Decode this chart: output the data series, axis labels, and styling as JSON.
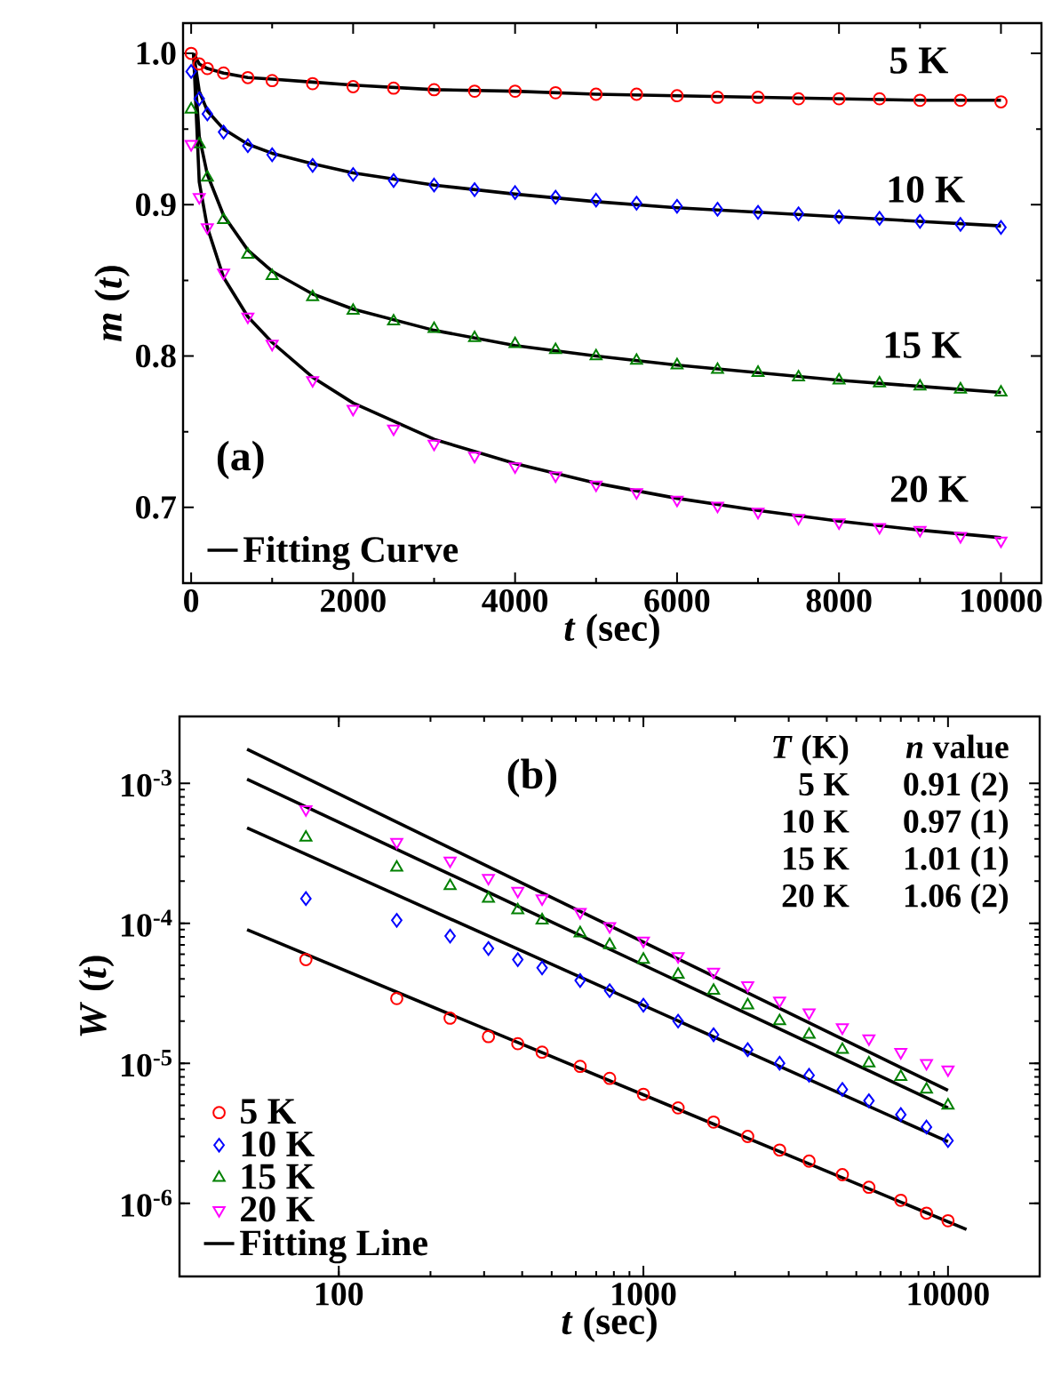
{
  "chart_data": [
    {
      "type": "scatter",
      "xlabel": "*t* (sec)",
      "ylabel": "*m* (*t*)",
      "xlim": [
        -100,
        10500
      ],
      "ylim": [
        0.65,
        1.02
      ],
      "xticks": [
        0,
        2000,
        4000,
        6000,
        8000,
        10000
      ],
      "yticks": [
        {
          "value": 0.7,
          "label": "0.7"
        },
        {
          "value": 0.8,
          "label": "0.8"
        },
        {
          "value": 0.9,
          "label": "0.9"
        },
        {
          "value": 1.0,
          "label": "1.0"
        }
      ],
      "legend": "bottom left",
      "x": [
        0,
        100,
        200,
        400,
        700,
        1000,
        1500,
        2000,
        2500,
        3000,
        3500,
        4000,
        4500,
        5000,
        5500,
        6000,
        6500,
        7000,
        7500,
        8000,
        8500,
        9000,
        9500,
        10000
      ],
      "series": [
        {
          "color": "#ff0000",
          "marker": "circle",
          "values": [
            1.0,
            0.993,
            0.99,
            0.987,
            0.984,
            0.982,
            0.98,
            0.978,
            0.977,
            0.976,
            0.975,
            0.975,
            0.974,
            0.973,
            0.973,
            0.972,
            0.971,
            0.971,
            0.97,
            0.97,
            0.97,
            0.969,
            0.969,
            0.968
          ]
        },
        {
          "color": "#0000ff",
          "marker": "diamond",
          "values": [
            0.988,
            0.97,
            0.96,
            0.948,
            0.939,
            0.933,
            0.926,
            0.92,
            0.916,
            0.913,
            0.91,
            0.908,
            0.905,
            0.903,
            0.901,
            0.899,
            0.897,
            0.895,
            0.894,
            0.892,
            0.891,
            0.889,
            0.887,
            0.885
          ]
        },
        {
          "color": "#008000",
          "marker": "triangle",
          "values": [
            0.963,
            0.94,
            0.918,
            0.89,
            0.867,
            0.853,
            0.839,
            0.83,
            0.823,
            0.818,
            0.812,
            0.808,
            0.804,
            0.8,
            0.797,
            0.794,
            0.791,
            0.789,
            0.786,
            0.784,
            0.782,
            0.78,
            0.778,
            0.776
          ]
        },
        {
          "color": "#ff00ff",
          "marker": "triangle down",
          "values": [
            0.94,
            0.905,
            0.885,
            0.855,
            0.826,
            0.808,
            0.784,
            0.765,
            0.752,
            0.742,
            0.734,
            0.727,
            0.721,
            0.715,
            0.71,
            0.705,
            0.701,
            0.697,
            0.693,
            0.69,
            0.687,
            0.685,
            0.681,
            0.678
          ]
        },
        {
          "type": "line",
          "name": "Fitting Curve",
          "color": "#000000",
          "x": [
            30,
            100,
            200,
            400,
            700,
            1000,
            1500,
            2000,
            3000,
            4000,
            5000,
            6000,
            7000,
            8000,
            9000,
            10000
          ],
          "values": [
            1.0,
            0.993,
            0.99,
            0.987,
            0.984,
            0.983,
            0.981,
            0.979,
            0.976,
            0.975,
            0.973,
            0.972,
            0.971,
            0.97,
            0.969,
            0.969
          ]
        },
        {
          "type": "line",
          "color": "#000000",
          "x": [
            30,
            100,
            200,
            400,
            700,
            1000,
            1500,
            2000,
            3000,
            4000,
            5000,
            6000,
            7000,
            8000,
            9000,
            10000
          ],
          "values": [
            1.0,
            0.975,
            0.962,
            0.95,
            0.94,
            0.934,
            0.927,
            0.921,
            0.913,
            0.907,
            0.902,
            0.898,
            0.895,
            0.892,
            0.889,
            0.886
          ]
        },
        {
          "type": "line",
          "color": "#000000",
          "x": [
            30,
            100,
            200,
            400,
            700,
            1000,
            1500,
            2000,
            3000,
            4000,
            5000,
            6000,
            7000,
            8000,
            9000,
            10000
          ],
          "values": [
            1.0,
            0.945,
            0.92,
            0.893,
            0.87,
            0.856,
            0.841,
            0.831,
            0.817,
            0.807,
            0.8,
            0.794,
            0.789,
            0.784,
            0.78,
            0.776
          ]
        },
        {
          "type": "line",
          "color": "#000000",
          "x": [
            30,
            100,
            200,
            400,
            700,
            1000,
            1500,
            2000,
            3000,
            4000,
            5000,
            6000,
            7000,
            8000,
            9000,
            10000
          ],
          "values": [
            1.0,
            0.915,
            0.885,
            0.852,
            0.826,
            0.809,
            0.786,
            0.769,
            0.745,
            0.729,
            0.716,
            0.706,
            0.698,
            0.691,
            0.685,
            0.68
          ]
        }
      ],
      "annotations": [
        "(a)",
        "5 K",
        "10 K",
        "15 K",
        "20 K"
      ]
    },
    {
      "type": "scatter",
      "xlabel": "*t* (sec)",
      "ylabel": "*W* (*t*)",
      "log": "xy",
      "xlim": [
        30,
        20000
      ],
      "ylim": [
        3e-07,
        0.003
      ],
      "xticks": [
        100,
        1000,
        10000
      ],
      "yticks": [
        {
          "value": 1e-06,
          "label": "10$^{-6}$"
        },
        {
          "value": 1e-05,
          "label": "10$^{-5}$"
        },
        {
          "value": 0.0001,
          "label": "10$^{-4}$"
        },
        {
          "value": 0.001,
          "label": "10$^{-3}$"
        }
      ],
      "legend": "bottom left",
      "x": [
        78,
        155,
        232,
        310,
        387,
        465,
        620,
        775,
        1000,
        1300,
        1700,
        2200,
        2800,
        3500,
        4500,
        5500,
        7000,
        8500,
        10000
      ],
      "series": [
        {
          "name": "5 K",
          "color": "#ff0000",
          "marker": "circle",
          "values": [
            5.5e-05,
            2.9e-05,
            2.1e-05,
            1.55e-05,
            1.38e-05,
            1.2e-05,
            9.5e-06,
            7.8e-06,
            6e-06,
            4.8e-06,
            3.8e-06,
            3e-06,
            2.4e-06,
            2e-06,
            1.6e-06,
            1.3e-06,
            1.05e-06,
            8.5e-07,
            7.5e-07
          ]
        },
        {
          "name": "10 K",
          "color": "#0000ff",
          "marker": "diamond",
          "values": [
            0.00015,
            0.000105,
            8.1e-05,
            6.6e-05,
            5.5e-05,
            4.8e-05,
            3.9e-05,
            3.3e-05,
            2.6e-05,
            2e-05,
            1.6e-05,
            1.25e-05,
            1e-05,
            8.2e-06,
            6.5e-06,
            5.4e-06,
            4.3e-06,
            3.5e-06,
            2.8e-06
          ]
        },
        {
          "name": "15 K",
          "color": "#008000",
          "marker": "triangle",
          "values": [
            0.00041,
            0.00025,
            0.000185,
            0.00015,
            0.000124,
            0.000105,
            8.5e-05,
            7e-05,
            5.5e-05,
            4.3e-05,
            3.3e-05,
            2.6e-05,
            2e-05,
            1.6e-05,
            1.25e-05,
            1e-05,
            8e-06,
            6.5e-06,
            5e-06
          ]
        },
        {
          "name": "20 K",
          "color": "#ff00ff",
          "marker": "triangle down",
          "values": [
            0.00065,
            0.00038,
            0.00028,
            0.00021,
            0.00017,
            0.00015,
            0.00012,
            9.5e-05,
            7.5e-05,
            5.8e-05,
            4.5e-05,
            3.6e-05,
            2.8e-05,
            2.3e-05,
            1.8e-05,
            1.5e-05,
            1.2e-05,
            1e-05,
            9e-06
          ]
        },
        {
          "type": "line",
          "name": "Fitting Line",
          "color": "#000000",
          "x": [
            50,
            11500
          ],
          "values": [
            9e-05,
            6.5e-07
          ]
        },
        {
          "type": "line",
          "color": "#000000",
          "x": [
            50,
            10000
          ],
          "values": [
            0.00048,
            2.75e-06
          ]
        },
        {
          "type": "line",
          "color": "#000000",
          "x": [
            50,
            10000
          ],
          "values": [
            0.00107,
            4.8e-06
          ]
        },
        {
          "type": "line",
          "color": "#000000",
          "x": [
            50,
            10000
          ],
          "values": [
            0.00175,
            6.4e-06
          ]
        }
      ],
      "annotations": [
        "(b)",
        "*T* (K)",
        "*n* value",
        "5 K",
        "0.91 (2)",
        "10 K",
        "0.97 (1)",
        "15 K",
        "1.01 (1)",
        "20 K",
        "1.06 (2)"
      ]
    }
  ]
}
